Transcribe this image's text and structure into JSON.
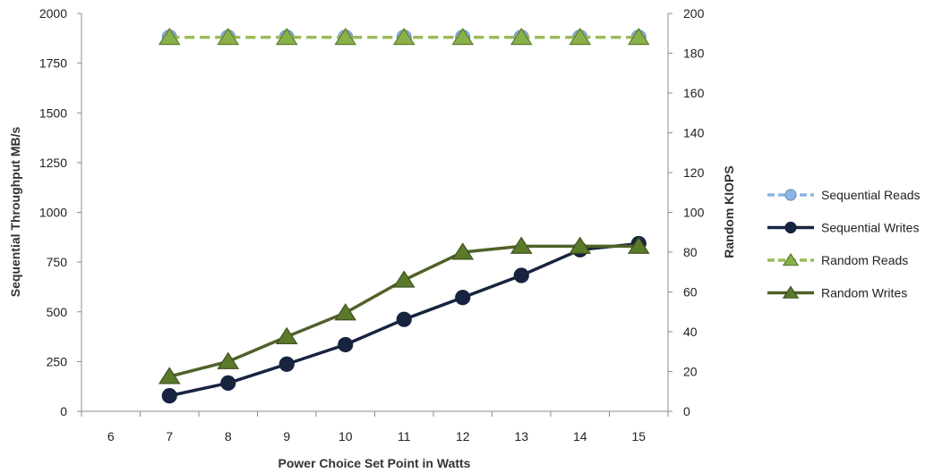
{
  "chart_data": {
    "type": "line",
    "title": "",
    "xlabel": "Power Choice Set Point in Watts",
    "ylabel": "Sequential Throughput MB/s",
    "y2label": "Random KIOPS",
    "categories": [
      "6",
      "7",
      "8",
      "9",
      "10",
      "11",
      "12",
      "13",
      "14",
      "15"
    ],
    "ylim": [
      0,
      2000
    ],
    "yticks": [
      "0",
      "250",
      "500",
      "750",
      "1000",
      "1250",
      "1500",
      "1750",
      "2000"
    ],
    "y2lim": [
      0,
      200
    ],
    "y2ticks": [
      "0",
      "20",
      "40",
      "60",
      "80",
      "100",
      "120",
      "140",
      "160",
      "180",
      "200"
    ],
    "grid": "none",
    "legend_position": "right",
    "series": [
      {
        "name": "Sequential Reads",
        "axis": "left",
        "style": "dashed",
        "marker": "circle",
        "line_color": "#8db3e2",
        "marker_fill": "#8db3e2",
        "marker_stroke": "#6f94c2",
        "values": [
          null,
          1880,
          1880,
          1880,
          1880,
          1880,
          1880,
          1880,
          1880,
          1880
        ]
      },
      {
        "name": "Sequential Writes",
        "axis": "left",
        "style": "solid",
        "marker": "circle",
        "line_color": "#17243f",
        "marker_fill": "#17243f",
        "marker_stroke": "#17243f",
        "values": [
          null,
          78,
          142,
          237,
          335,
          462,
          572,
          683,
          812,
          843
        ]
      },
      {
        "name": "Random Reads",
        "axis": "right",
        "style": "dashed",
        "marker": "triangle",
        "line_color": "#9bbb59",
        "marker_fill": "#8ab04a",
        "marker_stroke": "#5a7a2a",
        "values": [
          null,
          188,
          188,
          188,
          188,
          188,
          188,
          188,
          188,
          188
        ]
      },
      {
        "name": "Random Writes",
        "axis": "right",
        "style": "solid",
        "marker": "triangle",
        "line_color": "#4f6228",
        "marker_fill": "#5a7a2a",
        "marker_stroke": "#3f5020",
        "values": [
          null,
          17.5,
          25,
          37.5,
          49.5,
          66,
          80,
          83,
          83,
          83
        ]
      }
    ]
  }
}
